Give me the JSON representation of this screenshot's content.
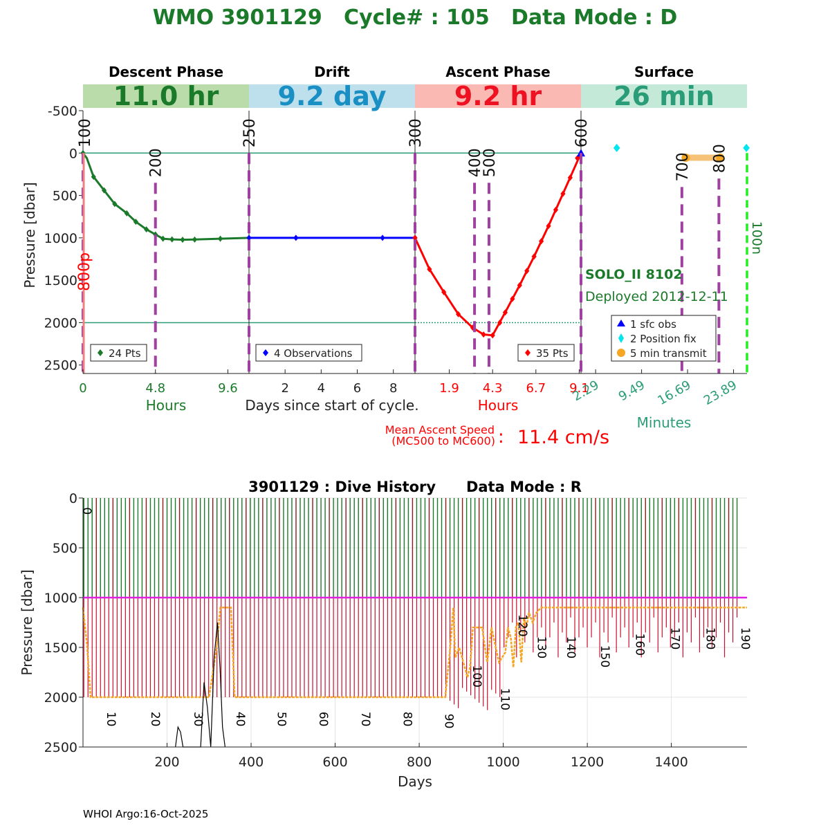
{
  "title": "WMO 3901129   Cycle# : 105   Data Mode : D",
  "colors": {
    "title": "#1a7a2a",
    "descent": "#1a7a2a",
    "drift": "#0000ff",
    "ascent": "#ff0000",
    "surface": "#2a9d78",
    "phase_magenta": "#a040a0",
    "orange": "#f5a623",
    "cyan": "#00e5ee"
  },
  "phases": [
    {
      "name": "Descent Phase",
      "duration": "11.0 hr",
      "bg": "#b9dcaa",
      "fg": "#1a7a2a"
    },
    {
      "name": "Drift",
      "duration": "9.2 day",
      "bg": "#bde0ec",
      "fg": "#1a8fc4"
    },
    {
      "name": "Ascent Phase",
      "duration": "9.2 hr",
      "bg": "#fbb9b4",
      "fg": "#ee1122"
    },
    {
      "name": "Surface",
      "duration": "26 min",
      "bg": "#c4e9d8",
      "fg": "#2a9d78"
    }
  ],
  "chart_data": [
    {
      "type": "line",
      "title": "Cycle profile",
      "ylabel": "Pressure [dbar]",
      "ylim": [
        -500,
        2600
      ],
      "yticks": [
        -500,
        0,
        500,
        1000,
        1500,
        2000,
        2500
      ],
      "ytick_labels": [
        "-500",
        "0",
        "500",
        "1000",
        "1500",
        "2000",
        "2500"
      ],
      "center_xlabel": "Days since start of cycle.",
      "panels": [
        {
          "name": "descent",
          "xlim": [
            0,
            11.0
          ],
          "xticks": [
            0,
            4.8,
            9.6
          ],
          "xtick_labels": [
            "0",
            "4.8",
            "9.6"
          ],
          "xlabel": "Hours",
          "legend": "24 Pts",
          "series_x": [
            0,
            0.25,
            0.7,
            1.4,
            2.1,
            2.9,
            3.5,
            4.2,
            4.8,
            5.3,
            5.9,
            6.6,
            7.4,
            9.1,
            11.0
          ],
          "series_y": [
            0,
            60,
            280,
            440,
            600,
            710,
            810,
            900,
            960,
            1010,
            1018,
            1022,
            1020,
            1010,
            1000
          ],
          "markers_x": [
            0,
            0.7,
            1.4,
            2.1,
            2.9,
            3.5,
            4.2,
            4.8,
            5.3,
            5.9,
            6.6,
            7.4,
            9.1
          ],
          "markers_y": [
            0,
            280,
            440,
            600,
            710,
            810,
            900,
            960,
            1010,
            1018,
            1022,
            1020,
            1010
          ],
          "mc_lines": [
            {
              "label": "100",
              "x": 0,
              "y_top": 0,
              "y_bot": 2600
            },
            {
              "label": "200",
              "x": 4.8,
              "y_top": 350,
              "y_bot": 2600
            }
          ],
          "side_label": "800p"
        },
        {
          "name": "drift",
          "xlim": [
            0,
            9.2
          ],
          "xticks": [
            2,
            4,
            6,
            8
          ],
          "xtick_labels": [
            "2",
            "4",
            "6",
            "8"
          ],
          "xlabel": "",
          "legend": "4 Observations",
          "series_x": [
            0,
            9.2
          ],
          "series_y": [
            1000,
            1000
          ],
          "markers_x": [
            0,
            2.6,
            7.4,
            9.2
          ],
          "markers_y": [
            1000,
            1000,
            1000,
            1000
          ],
          "mc_lines": [
            {
              "label": "250",
              "x": 0,
              "y_top": 0,
              "y_bot": 2600
            }
          ]
        },
        {
          "name": "ascent",
          "xlim": [
            0,
            9.2
          ],
          "xticks": [
            1.9,
            4.3,
            6.7,
            9.1
          ],
          "xtick_labels": [
            "1.9",
            "4.3",
            "6.7",
            "9.1"
          ],
          "xlabel": "Hours",
          "legend": "35 Pts",
          "series_x": [
            0,
            0.8,
            1.6,
            2.4,
            3.2,
            3.8,
            4.3,
            5.0,
            5.8,
            6.6,
            7.4,
            8.2,
            9.2
          ],
          "series_y": [
            1000,
            1370,
            1640,
            1900,
            2060,
            2140,
            2150,
            1880,
            1560,
            1220,
            860,
            480,
            0
          ],
          "markers_x": [
            0,
            0.8,
            1.6,
            2.4,
            3.2,
            3.8,
            4.3,
            4.7,
            5.0,
            5.4,
            5.8,
            6.2,
            6.6,
            7.0,
            7.4,
            7.8,
            8.2,
            8.6,
            9.0
          ],
          "markers_y": [
            1000,
            1370,
            1640,
            1900,
            2060,
            2140,
            2150,
            2000,
            1880,
            1720,
            1560,
            1390,
            1220,
            1040,
            860,
            670,
            480,
            290,
            60
          ],
          "mc_lines": [
            {
              "label": "300",
              "x": 0,
              "y_top": 0,
              "y_bot": 2600
            },
            {
              "label": "400",
              "x": 3.3,
              "y_top": 350,
              "y_bot": 2600
            },
            {
              "label": "500",
              "x": 4.1,
              "y_top": 350,
              "y_bot": 2600
            }
          ]
        },
        {
          "name": "surface",
          "xlim": [
            0,
            26
          ],
          "xticks": [
            2.29,
            9.49,
            16.69,
            23.89
          ],
          "xtick_labels": [
            "2.29",
            "9.49",
            "16.69",
            "23.89"
          ],
          "xlabel": "Minutes",
          "mc_lines": [
            {
              "label": "600",
              "x": 0,
              "y_top": 0,
              "y_bot": 2600
            },
            {
              "label": "700",
              "x": 15.8,
              "y_top": 400,
              "y_bot": 2600
            },
            {
              "label": "800",
              "x": 21.6,
              "y_top": 300,
              "y_bot": 2600
            }
          ],
          "sfc_obs_x": 0,
          "position_fix_x": [
            5.6,
            25.9
          ],
          "transmit_x": [
            16.4,
            21.8
          ],
          "transmit_y": 55,
          "right_label": "100n"
        }
      ],
      "float_info": {
        "model": "SOLO_II 8102",
        "deployed": "Deployed 2012-12-11"
      },
      "surface_legend": [
        "1 sfc obs",
        "2 Position fix",
        "5 min transmit"
      ],
      "ascent_speed": {
        "label_line1": "Mean Ascent Speed",
        "label_line2": "(MC500 to MC600)",
        "colon": ":",
        "value": "11.4 cm/s"
      }
    },
    {
      "type": "bar",
      "title": "3901129 : Dive History      Data Mode : R",
      "xlabel": "Days",
      "ylabel": "Pressure [dbar]",
      "xlim": [
        0,
        1580
      ],
      "ylim": [
        0,
        2500
      ],
      "xticks": [
        200,
        400,
        600,
        800,
        1000,
        1200,
        1400
      ],
      "xtick_labels": [
        "200",
        "400",
        "600",
        "800",
        "1000",
        "1200",
        "1400"
      ],
      "yticks": [
        0,
        500,
        1000,
        1500,
        2000,
        2500
      ],
      "ytick_labels": [
        "0",
        "500",
        "1000",
        "1500",
        "2000",
        "2500"
      ],
      "cycle_interval_days": 9.9,
      "num_cycles": 158,
      "drift_pressure": 1000,
      "profile_pressure_early": 2000,
      "cycle_labels": [
        {
          "label": "0",
          "day": 0,
          "pressure": 130
        },
        {
          "label": "10",
          "day": 58,
          "pressure": 2220
        },
        {
          "label": "20",
          "day": 163,
          "pressure": 2220
        },
        {
          "label": "30",
          "day": 265,
          "pressure": 2220
        },
        {
          "label": "40",
          "day": 365,
          "pressure": 2220
        },
        {
          "label": "50",
          "day": 463,
          "pressure": 2220
        },
        {
          "label": "60",
          "day": 563,
          "pressure": 2220
        },
        {
          "label": "70",
          "day": 663,
          "pressure": 2220
        },
        {
          "label": "80",
          "day": 763,
          "pressure": 2220
        },
        {
          "label": "90",
          "day": 862,
          "pressure": 2240
        },
        {
          "label": "100",
          "day": 928,
          "pressure": 1790
        },
        {
          "label": "110",
          "day": 995,
          "pressure": 2020
        },
        {
          "label": "120",
          "day": 1037,
          "pressure": 1280
        },
        {
          "label": "130",
          "day": 1082,
          "pressure": 1500
        },
        {
          "label": "140",
          "day": 1152,
          "pressure": 1500
        },
        {
          "label": "150",
          "day": 1233,
          "pressure": 1590
        },
        {
          "label": "160",
          "day": 1316,
          "pressure": 1470
        },
        {
          "label": "170",
          "day": 1400,
          "pressure": 1410
        },
        {
          "label": "180",
          "day": 1484,
          "pressure": 1410
        },
        {
          "label": "190",
          "day": 1567,
          "pressure": 1410
        }
      ],
      "orange_series_x": [
        0,
        10,
        18,
        300,
        318,
        327,
        352,
        361,
        862,
        874,
        881,
        886,
        895,
        905,
        915,
        921,
        928,
        950,
        958,
        962,
        972,
        982,
        990,
        1005,
        1011,
        1018,
        1024,
        1030,
        1036,
        1043,
        1049,
        1055,
        1061,
        1070,
        1079,
        1090,
        1100,
        1580
      ],
      "orange_series_y": [
        1100,
        1500,
        2000,
        2000,
        1500,
        1100,
        1100,
        2000,
        2000,
        1500,
        1100,
        1600,
        1500,
        1650,
        1800,
        1700,
        1300,
        1300,
        1550,
        1650,
        1300,
        1500,
        1650,
        1550,
        1300,
        1400,
        1700,
        1300,
        1250,
        1650,
        1200,
        1300,
        1150,
        1250,
        1150,
        1100,
        1100,
        1100
      ],
      "black_series_x": [
        220,
        226,
        232,
        238,
        280,
        288,
        296,
        304,
        312,
        320,
        326,
        332,
        338
      ],
      "black_series_y": [
        2500,
        2300,
        2350,
        2500,
        2500,
        1850,
        2100,
        2500,
        1600,
        1250,
        1700,
        2300,
        2500
      ]
    }
  ],
  "footer": "WHOI Argo:16-Oct-2025"
}
